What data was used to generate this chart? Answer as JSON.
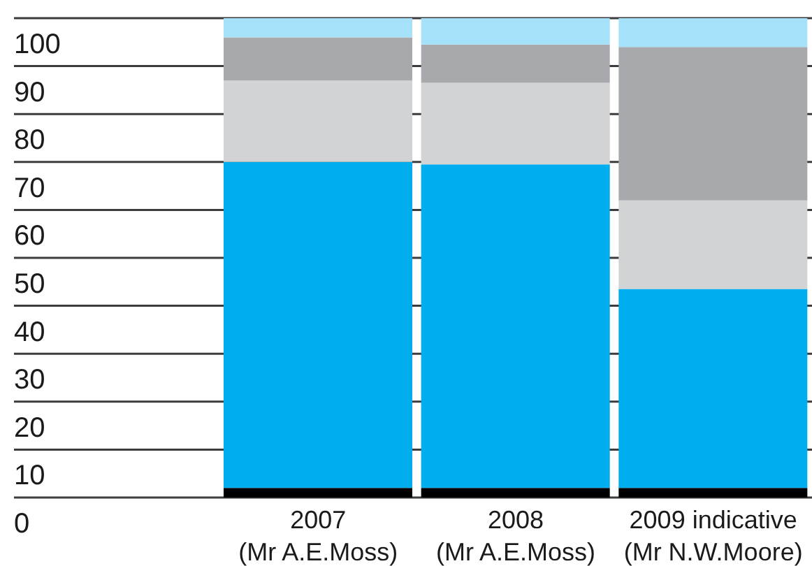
{
  "chart_data": {
    "type": "bar",
    "stacked": true,
    "categories": [
      "2007\n(Mr A.E.Moss)",
      "2008\n(Mr A.E.Moss)",
      "2009 indicative\n(Mr N.W.Moore)"
    ],
    "series": [
      {
        "color": "#000000",
        "values": [
          2,
          2,
          2
        ]
      },
      {
        "color": "#00adef",
        "values": [
          68,
          67.5,
          41.5
        ]
      },
      {
        "color": "#d1d3d4",
        "values": [
          17,
          17,
          18.5
        ]
      },
      {
        "color": "#a7a9ac",
        "values": [
          9,
          8,
          32
        ]
      },
      {
        "color": "#a6e1fa",
        "values": [
          4,
          5.5,
          6
        ]
      }
    ],
    "ylim": [
      0,
      100
    ],
    "yticks": [
      0,
      10,
      20,
      30,
      40,
      50,
      60,
      70,
      80,
      90,
      100
    ],
    "grid": "y"
  }
}
